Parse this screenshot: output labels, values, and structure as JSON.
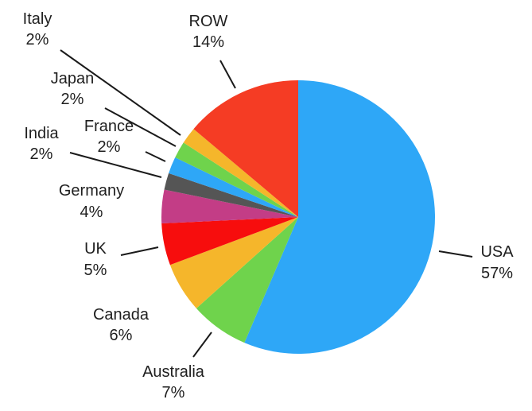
{
  "chart_data": {
    "type": "pie",
    "title": "",
    "slices": [
      {
        "label": "USA",
        "value": 57,
        "display": "57%",
        "color": "#2ea7f7"
      },
      {
        "label": "Australia",
        "value": 7,
        "display": "7%",
        "color": "#6fd34c"
      },
      {
        "label": "Canada",
        "value": 6,
        "display": "6%",
        "color": "#f5b62b"
      },
      {
        "label": "UK",
        "value": 5,
        "display": "5%",
        "color": "#f70d0d"
      },
      {
        "label": "Germany",
        "value": 4,
        "display": "4%",
        "color": "#c33d86"
      },
      {
        "label": "India",
        "value": 2,
        "display": "2%",
        "color": "#555555"
      },
      {
        "label": "France",
        "value": 2,
        "display": "2%",
        "color": "#2ea7f7"
      },
      {
        "label": "Japan",
        "value": 2,
        "display": "2%",
        "color": "#6fd34c"
      },
      {
        "label": "Italy",
        "value": 2,
        "display": "2%",
        "color": "#f5b62b"
      },
      {
        "label": "ROW",
        "value": 14,
        "display": "14%",
        "color": "#f53c24"
      }
    ],
    "legend": "none",
    "start_angle_deg": 0,
    "direction": "clockwise"
  }
}
